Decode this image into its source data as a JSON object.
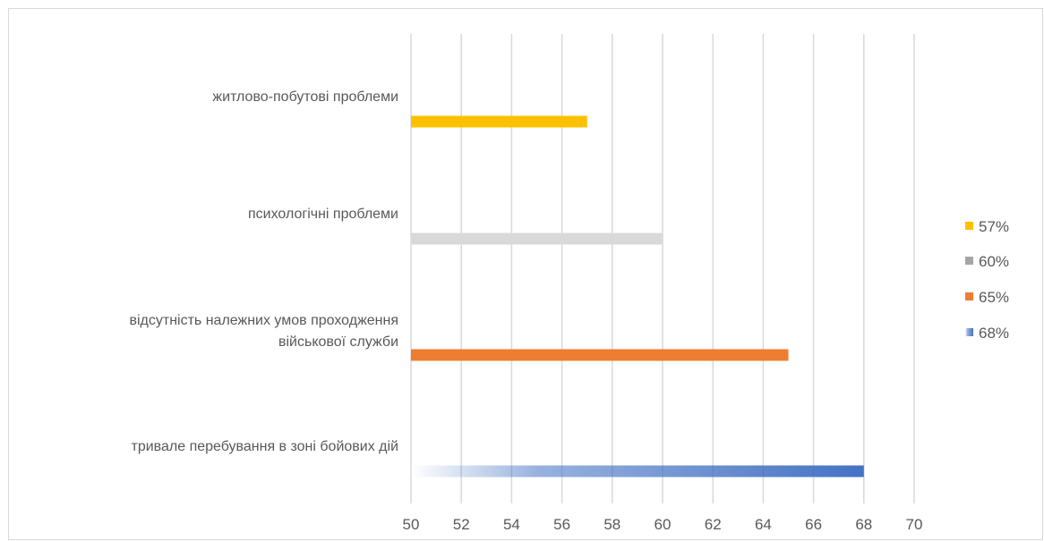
{
  "chart_data": {
    "type": "bar",
    "orientation": "horizontal",
    "xlim": [
      50,
      70
    ],
    "x_ticks": [
      50,
      52,
      54,
      56,
      58,
      60,
      62,
      64,
      66,
      68,
      70
    ],
    "grid": "vertical",
    "legend_position": "right",
    "categories": [
      [
        "житлово-побутові проблеми"
      ],
      [
        "психологічні проблеми"
      ],
      [
        "відсутність належних умов проходження",
        "військової служби"
      ],
      [
        "тривале перебування в зоні бойових дій"
      ]
    ],
    "series": [
      {
        "name": "57%",
        "values": [
          57,
          null,
          null,
          null
        ],
        "color": "#ffc000"
      },
      {
        "name": "60%",
        "values": [
          null,
          60,
          null,
          null
        ],
        "color": "#a5a5a5"
      },
      {
        "name": "65%",
        "values": [
          null,
          null,
          65,
          null
        ],
        "color": "#ed7d31"
      },
      {
        "name": "68%",
        "values": [
          null,
          null,
          null,
          68
        ],
        "color": "#4472c4",
        "fill": "gradient"
      }
    ],
    "colors": {
      "grid": "#d9d9d9",
      "text": "#595959",
      "bar_gray": "#d9d9d9"
    }
  }
}
